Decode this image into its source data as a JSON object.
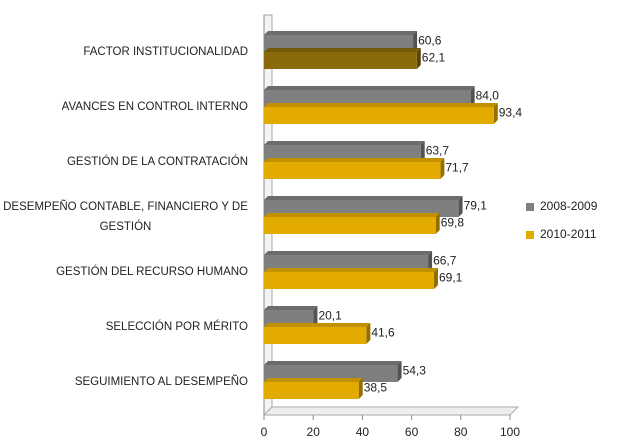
{
  "chart_data": {
    "type": "hbar",
    "categories": [
      "FACTOR INSTITUCIONALIDAD",
      "AVANCES EN CONTROL INTERNO",
      "GESTIÓN DE LA CONTRATACIÓN",
      "DESEMPEÑO CONTABLE, FINANCIERO Y DE GESTIÓN",
      "GESTIÓN DEL RECURSO HUMANO",
      "SELECCIÓN POR MÉRITO",
      "SEGUIMIENTO AL DESEMPEÑO"
    ],
    "series": [
      {
        "name": "2008-2009",
        "color": "#7f7f7f",
        "values": [
          60.6,
          84.0,
          63.7,
          79.1,
          66.7,
          20.1,
          54.3
        ],
        "value_labels": [
          "60,6",
          "84,0",
          "63,7",
          "79,1",
          "66,7",
          "20,1",
          "54,3"
        ]
      },
      {
        "name": "2010-2011",
        "color": "#e3aa00",
        "colors": [
          "#8a6a0a",
          "#e3aa00",
          "#e3aa00",
          "#e3aa00",
          "#e3aa00",
          "#e3aa00",
          "#e3aa00"
        ],
        "values": [
          62.1,
          93.4,
          71.7,
          69.8,
          69.1,
          41.6,
          38.5
        ],
        "value_labels": [
          "62,1",
          "93,4",
          "71,7",
          "69,8",
          "69,1",
          "41,6",
          "38,5"
        ]
      }
    ],
    "xlim": [
      0,
      100
    ],
    "xticks": [
      0,
      20,
      40,
      60,
      80,
      100
    ],
    "legend": "right"
  }
}
